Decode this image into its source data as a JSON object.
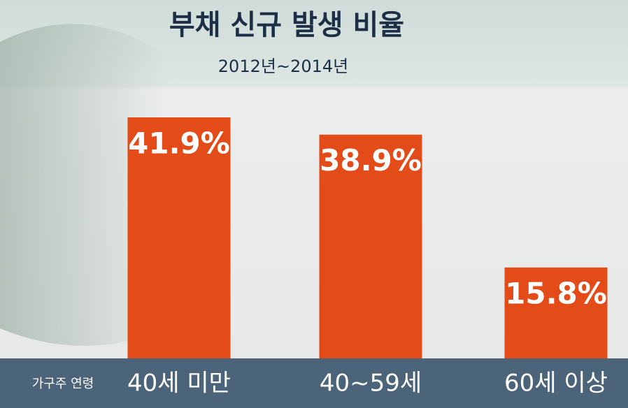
{
  "chart_data": {
    "type": "bar",
    "title": "부채 신규 발생 비율",
    "subtitle": "2012년~2014년",
    "x_label": "가구주 연령",
    "categories": [
      "40세 미만",
      "40~59세",
      "60세 이상"
    ],
    "values": [
      41.9,
      38.9,
      15.8
    ],
    "value_labels": [
      "41.9%",
      "38.9%",
      "15.8%"
    ],
    "color": "#e34b19"
  }
}
